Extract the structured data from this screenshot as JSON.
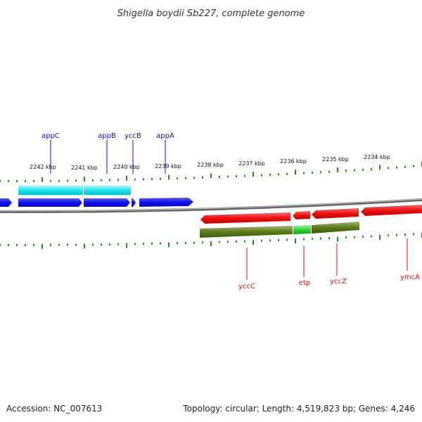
{
  "title": "Shigella boydii Sb227, complete genome",
  "footer": {
    "accession": "Accession: NC_007613",
    "topology": "Topology: circular; Length: 4,519,823 bp; Genes: 4,246"
  },
  "scale": {
    "unit": "kbp",
    "tick_labels": [
      "2242 kbp",
      "2241 kbp",
      "2240 kbp",
      "2239 kbp",
      "2238 kbp",
      "2237 kbp",
      "2236 kbp",
      "2235 kbp",
      "2234 kbp"
    ]
  },
  "colors": {
    "forward_gene": "#1010ee",
    "forward_operon": "#22e6ee",
    "reverse_gene": "#ee1111",
    "reverse_operon": "#5a7a1a",
    "reverse_operon_highlight": "#2ed83a",
    "backbone": "#888888",
    "ticks": "#2a8a22",
    "forward_label": "#1010bb",
    "reverse_label": "#cc1111"
  },
  "genes": {
    "forward": [
      "appC",
      "appB",
      "yccB",
      "appA"
    ],
    "reverse": [
      "yccC",
      "etp",
      "yccZ",
      "ymcA"
    ]
  }
}
